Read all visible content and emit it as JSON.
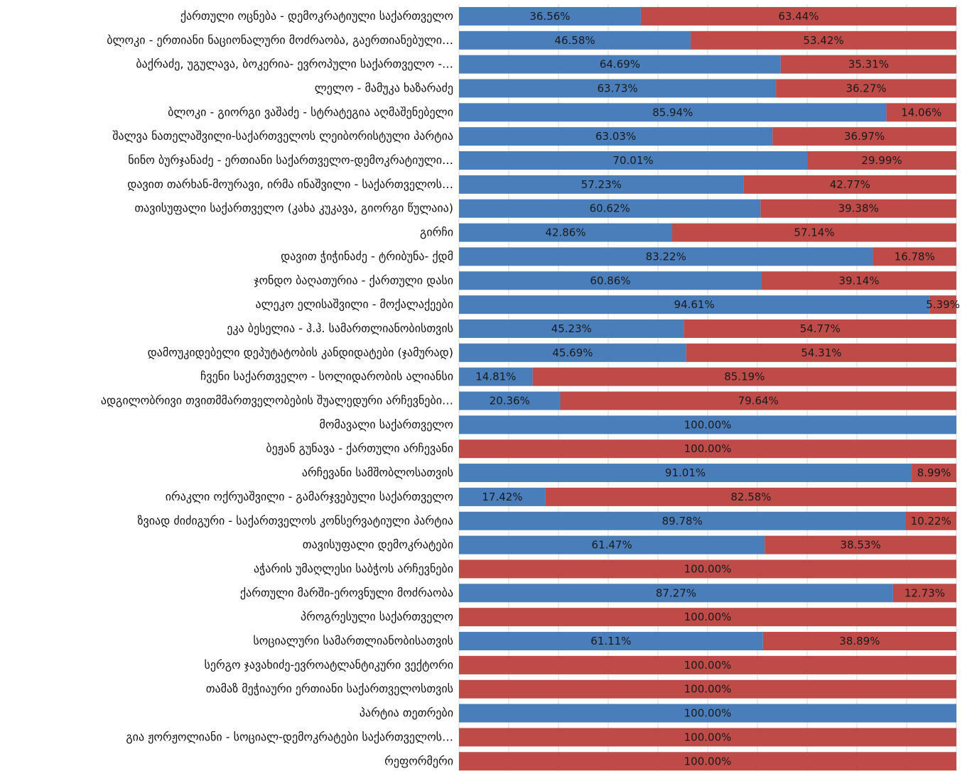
{
  "chart_data": {
    "type": "bar",
    "orientation": "horizontal",
    "stacked": true,
    "xlim": [
      0,
      100
    ],
    "grid": true,
    "categories": [
      "ქართული ოცნება - დემოკრატიული საქართველო",
      "ბლოკი - ერთიანი ნაციონალური მოძრაობა, გაერთიანებული…",
      "ბაქრაძე, უგულავა, ბოკერია- ევროპული საქართველო -…",
      "ლელო - მამუკა ხაზარაძე",
      "ბლოკი - გიორგი ვაშაძე - სტრატეგია აღმაშენებელი",
      "შალვა ნათელაშვილი-საქართველოს ლეიბორისტული პარტია",
      "ნინო ბურჯანაძე - ერთიანი საქართველო-დემოკრატიული…",
      "დავით თარხან-მოურავი, ირმა ინაშვილი - საქართველოს…",
      "თავისუფალი საქართველო (კახა კუკავა, გიორგი წულაია)",
      "გირჩი",
      "დავით ჭიჭინაძე - ტრიბუნა- ქდმ",
      "ჯონდო ბაღათურია - ქართული დასი",
      "ალეკო ელისაშვილი - მოქალაქეები",
      "ეკა ბესელია - ჰ.ჰ. სამართლიანობისთვის",
      "დამოუკიდებელი დეპუტატობის კანდიდატები (ჯამურად)",
      "ჩვენი საქართველო - სოლიდარობის ალიანსი",
      "ადგილობრივი თვითმმართველობების შუალედური არჩევნები…",
      "მომავალი საქართველო",
      "ბეჟან გუნავა - ქართული არჩევანი",
      "არჩევანი სამშობლოსათვის",
      "ირაკლი ოქრუაშვილი - გამარჯვებული საქართველო",
      "ზვიად ძიძიგური - საქართველოს კონსერვატიული პარტია",
      "თავისუფალი დემოკრატები",
      "აჭარის უმაღლესი საბჭოს არჩევნები",
      "ქართული მარში-ეროვნული მოძრაობა",
      "პროგრესული საქართველო",
      "სოციალური სამართლიანობისათვის",
      "სერგო ჯავახიძე-ევროატლანტიკური ვექტორი",
      "თამაზ მეჭიაური ერთიანი საქართველოსთვის",
      "პარტია თეთრები",
      "გია ჟორჟოლიანი - სოციალ-დემოკრატები საქართველოს…",
      "რეფორმერი"
    ],
    "series": [
      {
        "color": "#4a7ebb",
        "values": [
          36.56,
          46.58,
          64.69,
          63.73,
          85.94,
          63.03,
          70.01,
          57.23,
          60.62,
          42.86,
          83.22,
          60.86,
          94.61,
          45.23,
          45.69,
          14.81,
          20.36,
          100.0,
          0,
          91.01,
          17.42,
          89.78,
          61.47,
          0,
          87.27,
          0,
          61.11,
          0,
          0,
          100.0,
          0,
          0
        ],
        "labels": [
          "36.56%",
          "46.58%",
          "64.69%",
          "63.73%",
          "85.94%",
          "63.03%",
          "70.01%",
          "57.23%",
          "60.62%",
          "42.86%",
          "83.22%",
          "60.86%",
          "94.61%",
          "45.23%",
          "45.69%",
          "14.81%",
          "20.36%",
          "100.00%",
          "",
          "91.01%",
          "17.42%",
          "89.78%",
          "61.47%",
          "",
          "87.27%",
          "",
          "61.11%",
          "",
          "",
          "100.00%",
          "",
          ""
        ]
      },
      {
        "color": "#be4b48",
        "values": [
          63.44,
          53.42,
          35.31,
          36.27,
          14.06,
          36.97,
          29.99,
          42.77,
          39.38,
          57.14,
          16.78,
          39.14,
          5.39,
          54.77,
          54.31,
          85.19,
          79.64,
          0,
          100.0,
          8.99,
          82.58,
          10.22,
          38.53,
          100.0,
          12.73,
          100.0,
          38.89,
          100.0,
          100.0,
          0,
          100.0,
          100.0
        ],
        "labels": [
          "63.44%",
          "53.42%",
          "35.31%",
          "36.27%",
          "14.06%",
          "36.97%",
          "29.99%",
          "42.77%",
          "39.38%",
          "57.14%",
          "16.78%",
          "39.14%",
          "5.39%",
          "54.77%",
          "54.31%",
          "85.19%",
          "79.64%",
          "",
          "100.00%",
          "8.99%",
          "82.58%",
          "10.22%",
          "38.53%",
          "100.00%",
          "12.73%",
          "100.00%",
          "38.89%",
          "100.00%",
          "100.00%",
          "",
          "100.00%",
          "100.00%"
        ]
      }
    ]
  }
}
